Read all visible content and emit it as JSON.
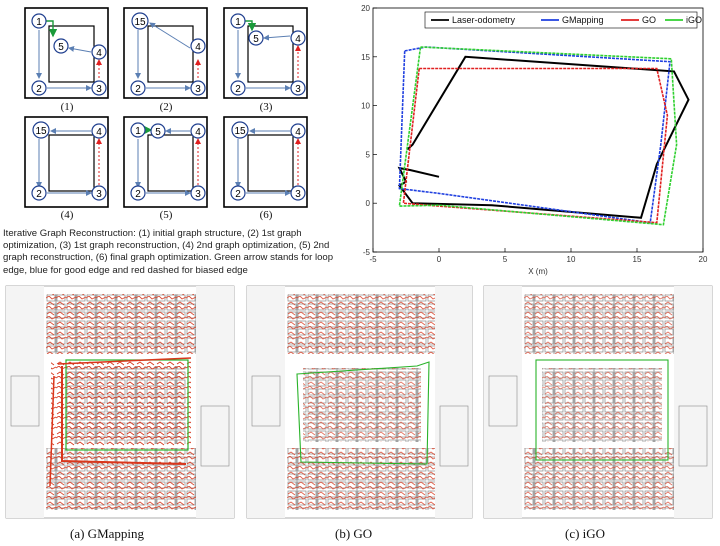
{
  "graph_panels": [
    {
      "caption": "(1)",
      "nodes": [
        "1",
        "5",
        "4",
        "2",
        "3"
      ]
    },
    {
      "caption": "(2)",
      "nodes": [
        "15",
        "4",
        "2",
        "3"
      ]
    },
    {
      "caption": "(3)",
      "nodes": [
        "1",
        "5",
        "4",
        "2",
        "3"
      ]
    },
    {
      "caption": "(4)",
      "nodes": [
        "15",
        "4",
        "2",
        "3"
      ]
    },
    {
      "caption": "(5)",
      "nodes": [
        "1",
        "5",
        "4",
        "2",
        "3"
      ]
    },
    {
      "caption": "(6)",
      "nodes": [
        "15",
        "4",
        "2",
        "3"
      ]
    }
  ],
  "figure_caption": "Iterative Graph Reconstruction: (1) initial graph structure, (2) 1st graph optimization, (3) 1st graph reconstruction, (4) 2nd graph optimization, (5) 2nd graph reconstruction, (6) final graph optimization. Green arrow stands for loop edge, blue for good edge and red dashed for biased edge",
  "colors": {
    "loop_edge": "#1a9a3a",
    "good_edge": "#5b7fb3",
    "biased_edge": "#e02020",
    "laser": "#000000",
    "gmapping": "#1f3fe0",
    "go": "#e02020",
    "igo": "#2fd02f"
  },
  "chart_data": {
    "type": "line",
    "xlabel": "X (m)",
    "xlim": [
      -5,
      20
    ],
    "ylim": [
      -5,
      20
    ],
    "xticks": [
      -5,
      0,
      5,
      10,
      15,
      20
    ],
    "yticks": [
      -5,
      0,
      5,
      10,
      15,
      20
    ],
    "legend_position": "top",
    "series": [
      {
        "name": "Laser-odometry",
        "x": [
          -2.4,
          -2.0,
          2.0,
          17.8,
          18.9,
          16.5,
          15.3,
          4.0,
          -2.0,
          -3.0,
          -2.5,
          -3.0,
          -2.2,
          0.0
        ],
        "y": [
          5.5,
          6.0,
          15.0,
          13.5,
          10.6,
          4.0,
          -1.5,
          -0.2,
          0.0,
          1.8,
          2.2,
          3.6,
          3.4,
          2.7
        ]
      },
      {
        "name": "GMapping",
        "x": [
          -2.6,
          -1.0,
          17.5,
          16.8,
          16.0,
          0.0,
          -3.0,
          -2.6
        ],
        "y": [
          15.6,
          16.0,
          14.5,
          6.0,
          -2.0,
          1.0,
          1.5,
          15.6
        ]
      },
      {
        "name": "GO",
        "x": [
          -1.5,
          16.5,
          17.3,
          16.5,
          0.0,
          -2.7,
          -1.5
        ],
        "y": [
          13.8,
          13.8,
          9.0,
          -2.0,
          -0.3,
          0.0,
          13.8
        ]
      },
      {
        "name": "iGO",
        "x": [
          -1.4,
          17.6,
          18.0,
          17.0,
          0.0,
          -3.0,
          -1.4
        ],
        "y": [
          16.0,
          14.8,
          6.0,
          -2.2,
          -0.2,
          -0.3,
          16.0
        ]
      }
    ]
  },
  "map_captions": [
    "(a)  GMapping",
    "(b)  GO",
    "(c)  iGO"
  ]
}
